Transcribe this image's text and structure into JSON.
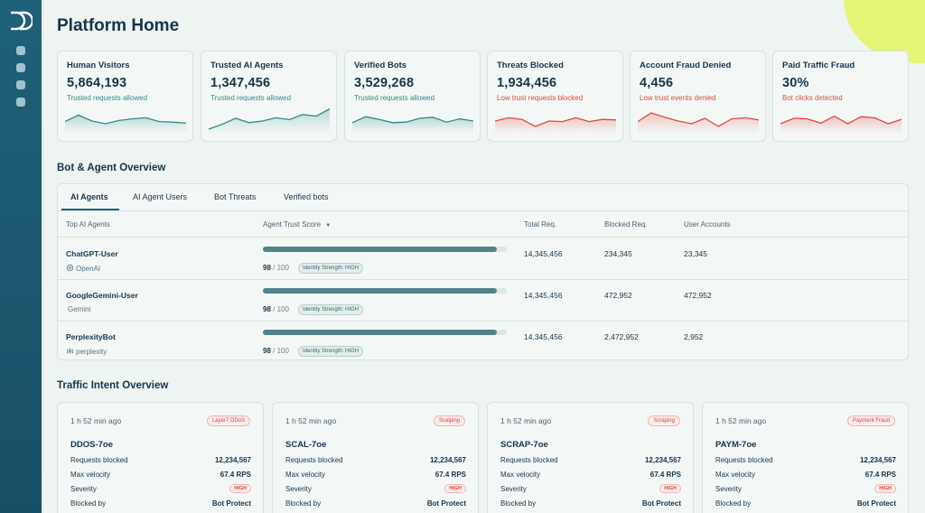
{
  "page": {
    "title": "Platform Home"
  },
  "colors": {
    "teal": "#2f8a86",
    "red": "#e2483c",
    "sidebar": "#1f6178",
    "accent_blob": "#e4f46a"
  },
  "metrics": [
    {
      "label": "Human Visitors",
      "value": "5,864,193",
      "sub": "Trusted requests allowed",
      "tone": "good",
      "spark": [
        0.38,
        0.62,
        0.4,
        0.3,
        0.42,
        0.48,
        0.52,
        0.38,
        0.36,
        0.32
      ]
    },
    {
      "label": "Trusted AI Agents",
      "value": "1,347,456",
      "sub": "Trusted requests allowed",
      "tone": "good",
      "spark": [
        0.1,
        0.28,
        0.5,
        0.34,
        0.4,
        0.52,
        0.45,
        0.64,
        0.58,
        0.85
      ]
    },
    {
      "label": "Verified Bots",
      "value": "3,529,268",
      "sub": "Trusted requests allowed",
      "tone": "good",
      "spark": [
        0.34,
        0.56,
        0.46,
        0.34,
        0.36,
        0.5,
        0.54,
        0.36,
        0.48,
        0.4
      ]
    },
    {
      "label": "Threats Blocked",
      "value": "1,934,456",
      "sub": "Low trust requests blocked",
      "tone": "bad",
      "spark": [
        0.4,
        0.52,
        0.46,
        0.2,
        0.4,
        0.38,
        0.52,
        0.38,
        0.46,
        0.44
      ]
    },
    {
      "label": "Account Fraud Denied",
      "value": "4,456",
      "sub": "Low trust events denied",
      "tone": "bad",
      "spark": [
        0.38,
        0.7,
        0.54,
        0.4,
        0.3,
        0.5,
        0.2,
        0.48,
        0.52,
        0.44
      ]
    },
    {
      "label": "Paid Traffic Fraud",
      "value": "30%",
      "sub": "Bot clicks detected",
      "tone": "bad",
      "spark": [
        0.3,
        0.5,
        0.48,
        0.32,
        0.58,
        0.3,
        0.56,
        0.52,
        0.3,
        0.46
      ]
    }
  ],
  "overview": {
    "title": "Bot & Agent Overview",
    "tabs": [
      "AI Agents",
      "AI Agent Users",
      "Bot Threats",
      "Verified bots"
    ],
    "active_tab": 0,
    "columns": {
      "agent": "Top AI Agents",
      "trust": "Agent Trust Score",
      "total": "Total Req.",
      "blocked": "Blocked Req.",
      "users": "User Accounts"
    },
    "rows": [
      {
        "name": "ChatGPT-User",
        "vendor": "OpenAI",
        "vendor_icon": "openai-icon",
        "score": "98",
        "max": "100",
        "fill": 0.96,
        "strength": "Identity Strength: HIGH",
        "total": "14,345,456",
        "blocked": "234,345",
        "users": "23,345"
      },
      {
        "name": "GoogleGemini-User",
        "vendor": "Gemini",
        "vendor_icon": "gemini-icon",
        "score": "98",
        "max": "100",
        "fill": 0.96,
        "strength": "Identity Strength: HIGH",
        "total": "14,345,456",
        "blocked": "472,952",
        "users": "472,952"
      },
      {
        "name": "PerplexityBot",
        "vendor": "perplexity",
        "vendor_icon": "perplexity-icon",
        "score": "98",
        "max": "100",
        "fill": 0.96,
        "strength": "Identity Strength: HIGH",
        "total": "14,345,456",
        "blocked": "2,472,952",
        "users": "2,952"
      }
    ]
  },
  "intent": {
    "title": "Traffic Intent Overview",
    "cards": [
      {
        "time": "1 h 52 min ago",
        "tag": "Layer7 DDoS",
        "name": "DDOS-7oe",
        "blocked": "12,234,567",
        "velocity": "67.4 RPS",
        "severity": "HIGH",
        "blocked_by": "Bot Protect"
      },
      {
        "time": "1 h 52 min ago",
        "tag": "Scalping",
        "name": "SCAL-7oe",
        "blocked": "12,234,567",
        "velocity": "67.4 RPS",
        "severity": "HIGH",
        "blocked_by": "Bot Protect"
      },
      {
        "time": "1 h 52 min ago",
        "tag": "Scraping",
        "name": "SCRAP-7oe",
        "blocked": "12,234,567",
        "velocity": "67.4 RPS",
        "severity": "HIGH",
        "blocked_by": "Bot Protect"
      },
      {
        "time": "1 h 52 min ago",
        "tag": "Payment Fraud",
        "name": "PAYM-7oe",
        "blocked": "12,234,567",
        "velocity": "67.4 RPS",
        "severity": "HIGH",
        "blocked_by": "Bot Protect"
      }
    ],
    "labels": {
      "blocked": "Requests blocked",
      "velocity": "Max velocity",
      "severity": "Severity",
      "blocked_by": "Blocked by"
    }
  }
}
